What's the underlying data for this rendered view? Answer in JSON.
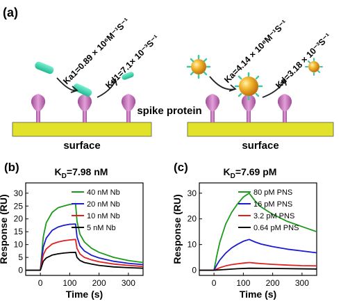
{
  "panel_a": {
    "label": "(a)",
    "left_rates": {
      "ka": "Ka1=0.89 × 10⁶M⁻¹S⁻¹",
      "kd": "Kd1=7.1× 10⁻³S⁻¹"
    },
    "right_rates": {
      "ka": "Ka=4.14 × 10⁸M⁻¹S⁻¹",
      "kd": "Kd=3.18 × 10⁻³S⁻¹"
    },
    "spike_label": "spike protein",
    "surface_label": "surface",
    "colors": {
      "surface": "#e2e22a",
      "spike": "#c070b0",
      "nanobody": "#40d8b0",
      "nanoparticle": "#e8a020"
    }
  },
  "chart_data": [
    {
      "panel_label": "(b)",
      "type": "line",
      "title": "K_D=7.98 nM",
      "title_main": "K",
      "title_sub": "D",
      "title_rest": "=7.98 nM",
      "xlabel": "Time (s)",
      "ylabel": "Response (RU)",
      "xlim": [
        -50,
        350
      ],
      "ylim": [
        -2,
        34
      ],
      "xticks": [
        0,
        100,
        200,
        300
      ],
      "yticks": [
        0,
        5,
        10,
        15,
        20,
        25,
        30
      ],
      "injection_end": 120,
      "legend_position": "top-right",
      "series": [
        {
          "name": "40 nM Nb",
          "color": "#1a9a1a",
          "values": [
            [
              -50,
              0
            ],
            [
              0,
              0
            ],
            [
              10,
              13
            ],
            [
              20,
              18.5
            ],
            [
              40,
              22.5
            ],
            [
              60,
              24.3
            ],
            [
              80,
              25
            ],
            [
              100,
              25.6
            ],
            [
              120,
              26
            ],
            [
              125,
              19
            ],
            [
              135,
              14
            ],
            [
              150,
              11
            ],
            [
              175,
              8.5
            ],
            [
              200,
              7
            ],
            [
              250,
              5
            ],
            [
              300,
              3.8
            ],
            [
              350,
              3
            ]
          ]
        },
        {
          "name": "20 nM Nb",
          "color": "#1a1ad0",
          "values": [
            [
              -50,
              0
            ],
            [
              0,
              0
            ],
            [
              10,
              9
            ],
            [
              20,
              12.5
            ],
            [
              40,
              15.5
            ],
            [
              60,
              16.8
            ],
            [
              80,
              17.5
            ],
            [
              100,
              17.9
            ],
            [
              120,
              18
            ],
            [
              125,
              13
            ],
            [
              135,
              9.5
            ],
            [
              150,
              7.5
            ],
            [
              175,
              5.8
            ],
            [
              200,
              4.8
            ],
            [
              250,
              3.5
            ],
            [
              300,
              2.7
            ],
            [
              350,
              2.2
            ]
          ]
        },
        {
          "name": "10 nM Nb",
          "color": "#e02020",
          "values": [
            [
              -50,
              0
            ],
            [
              0,
              0
            ],
            [
              10,
              6
            ],
            [
              20,
              8.3
            ],
            [
              40,
              10.2
            ],
            [
              60,
              11
            ],
            [
              80,
              11.5
            ],
            [
              100,
              11.8
            ],
            [
              120,
              12
            ],
            [
              125,
              8.5
            ],
            [
              135,
              6.3
            ],
            [
              150,
              5
            ],
            [
              175,
              4
            ],
            [
              200,
              3.3
            ],
            [
              250,
              2.4
            ],
            [
              300,
              1.9
            ],
            [
              350,
              1.5
            ]
          ]
        },
        {
          "name": "5 nM Nb",
          "color": "#000000",
          "values": [
            [
              -50,
              0
            ],
            [
              0,
              0
            ],
            [
              10,
              3.5
            ],
            [
              20,
              4.8
            ],
            [
              40,
              5.9
            ],
            [
              60,
              6.4
            ],
            [
              80,
              6.7
            ],
            [
              100,
              6.9
            ],
            [
              120,
              7
            ],
            [
              125,
              5
            ],
            [
              135,
              3.8
            ],
            [
              150,
              3
            ],
            [
              175,
              2.4
            ],
            [
              200,
              1.9
            ],
            [
              250,
              1.3
            ],
            [
              300,
              1
            ],
            [
              350,
              0.8
            ]
          ]
        }
      ]
    },
    {
      "panel_label": "(c)",
      "type": "line",
      "title": "K_D=7.69 pM",
      "title_main": "K",
      "title_sub": "D",
      "title_rest": "=7.69 pM",
      "xlabel": "Time (s)",
      "ylabel": "Response (RU)",
      "xlim": [
        -50,
        350
      ],
      "ylim": [
        -2,
        34
      ],
      "xticks": [
        0,
        100,
        200,
        300
      ],
      "yticks": [
        0,
        10,
        20,
        30
      ],
      "injection_end": 120,
      "legend_position": "top-right",
      "series": [
        {
          "name": "80 pM PNS",
          "color": "#1a9a1a",
          "values": [
            [
              -50,
              0
            ],
            [
              0,
              0
            ],
            [
              10,
              6
            ],
            [
              20,
              11
            ],
            [
              40,
              18
            ],
            [
              60,
              22.5
            ],
            [
              80,
              25.8
            ],
            [
              100,
              28.5
            ],
            [
              120,
              30
            ],
            [
              140,
              27
            ],
            [
              160,
              24.7
            ],
            [
              200,
              21.8
            ],
            [
              250,
              19
            ],
            [
              300,
              17
            ],
            [
              350,
              15
            ]
          ]
        },
        {
          "name": "16 pM PNS",
          "color": "#1a1ad0",
          "values": [
            [
              -50,
              0
            ],
            [
              0,
              0
            ],
            [
              10,
              2.2
            ],
            [
              20,
              4
            ],
            [
              40,
              6.7
            ],
            [
              60,
              8.7
            ],
            [
              80,
              10.1
            ],
            [
              100,
              11.3
            ],
            [
              120,
              12
            ],
            [
              140,
              11
            ],
            [
              160,
              10.2
            ],
            [
              200,
              9.2
            ],
            [
              250,
              8.2
            ],
            [
              300,
              7.5
            ],
            [
              350,
              6.8
            ]
          ]
        },
        {
          "name": "3.2 pM PNS",
          "color": "#e02020",
          "values": [
            [
              -50,
              0
            ],
            [
              0,
              0
            ],
            [
              20,
              1
            ],
            [
              40,
              1.7
            ],
            [
              60,
              2.2
            ],
            [
              80,
              2.5
            ],
            [
              100,
              2.8
            ],
            [
              120,
              3
            ],
            [
              140,
              2.8
            ],
            [
              160,
              2.6
            ],
            [
              200,
              2.3
            ],
            [
              250,
              2
            ],
            [
              300,
              1.8
            ],
            [
              350,
              1.7
            ]
          ]
        },
        {
          "name": "0.64 pM PNS",
          "color": "#000000",
          "values": [
            [
              -50,
              0
            ],
            [
              0,
              0
            ],
            [
              40,
              0.3
            ],
            [
              80,
              0.6
            ],
            [
              120,
              0.8
            ],
            [
              200,
              0.7
            ],
            [
              350,
              0.5
            ]
          ]
        }
      ]
    }
  ]
}
